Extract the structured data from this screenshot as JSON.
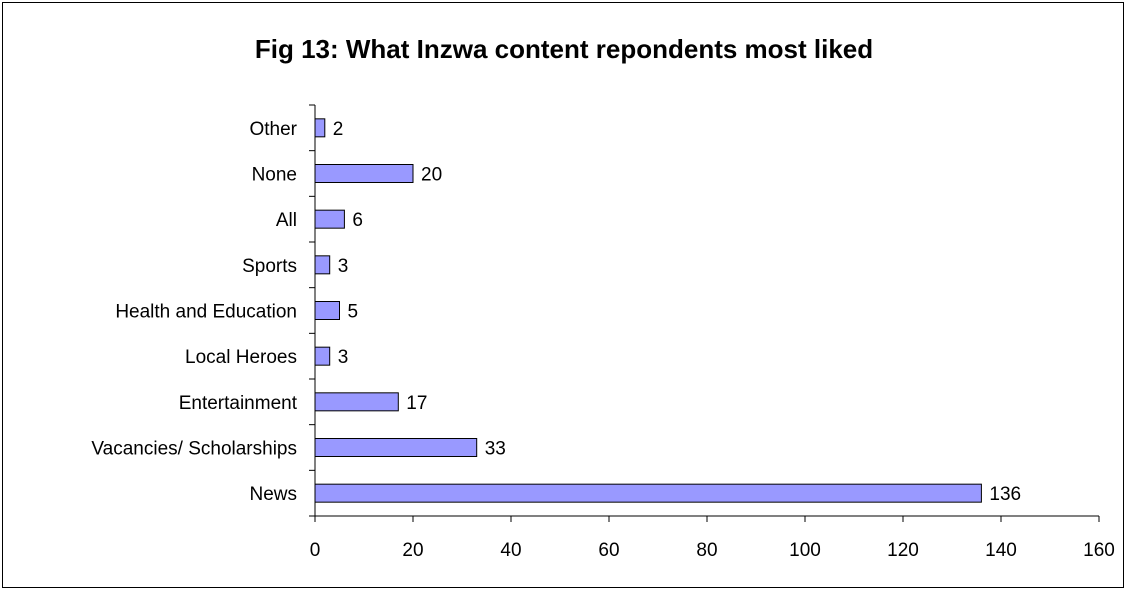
{
  "chart_data": {
    "type": "bar",
    "orientation": "horizontal",
    "title": "Fig 13: What Inzwa content repondents most liked",
    "xlabel": "",
    "ylabel": "",
    "categories": [
      "News",
      "Vacancies/ Scholarships",
      "Entertainment",
      "Local Heroes",
      "Health and Education",
      "Sports",
      "All",
      "None",
      "Other"
    ],
    "values": [
      136,
      33,
      17,
      3,
      5,
      3,
      6,
      20,
      2
    ],
    "xlim": [
      0,
      160
    ],
    "xticks": [
      0,
      20,
      40,
      60,
      80,
      100,
      120,
      140,
      160
    ],
    "grid": false,
    "legend": "none",
    "colors": {
      "bar_fill": "#9999ff",
      "bar_stroke": "#000000",
      "axis": "#000000",
      "text": "#000000"
    }
  }
}
